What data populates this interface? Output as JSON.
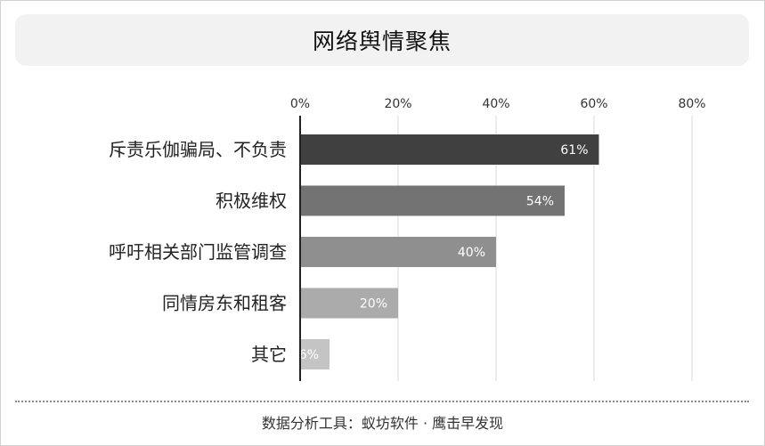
{
  "chart_data": {
    "type": "bar",
    "orientation": "horizontal",
    "title": "网络舆情聚焦",
    "categories": [
      "斥责乐伽骗局、不负责",
      "积极维权",
      "呼吁相关部门监管调查",
      "同情房东和租客",
      "其它"
    ],
    "values": [
      61,
      54,
      40,
      20,
      6
    ],
    "value_labels": [
      "61%",
      "54%",
      "40%",
      "20%",
      "6%"
    ],
    "xlim": [
      0,
      80
    ],
    "x_ticks": [
      0,
      20,
      40,
      60,
      80
    ],
    "x_tick_labels": [
      "0%",
      "20%",
      "40%",
      "60%",
      "80%"
    ],
    "axis_position": "top",
    "grid": true,
    "bar_colors": [
      "#404040",
      "#737373",
      "#8f8f8f",
      "#ababab",
      "#c4c4c4"
    ]
  },
  "footer": {
    "source": "数据分析工具：蚁坊软件 · 鹰击早发现"
  }
}
